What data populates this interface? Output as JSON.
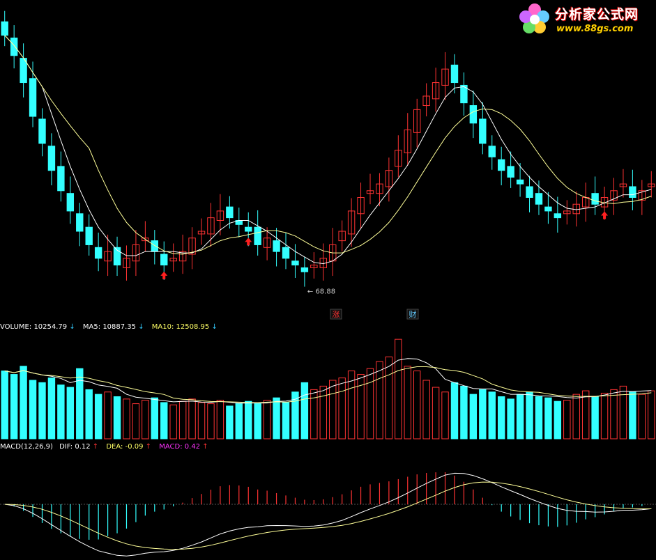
{
  "logo": {
    "name": "分析家公式网",
    "url": "www.88gs.com"
  },
  "colors": {
    "up": "#ff3333",
    "down": "#33ffff",
    "ma_white": "#ffffff",
    "ma_yellow": "#ffff99",
    "dif_label": "#ffffff",
    "dea_label": "#ffff66",
    "macd_label": "#ff33ff",
    "signal_red": "#ff2020"
  },
  "price_panel": {
    "low_marker": "68.88",
    "event_rise": "涨",
    "event_finance": "财"
  },
  "volume_panel": {
    "label_volume": "VOLUME:",
    "volume_value": "10254.79",
    "volume_arrow": "↓",
    "label_ma5": "MA5:",
    "ma5_value": "10887.35",
    "ma5_arrow": "↓",
    "label_ma10": "MA10:",
    "ma10_value": "12508.95",
    "ma10_arrow": "↓"
  },
  "macd_panel": {
    "label_macd_params": "MACD(12,26,9)",
    "label_dif": "DIF:",
    "dif_value": "0.12",
    "dif_arrow": "↑",
    "label_dea": "DEA:",
    "dea_value": "-0.09",
    "dea_arrow": "↑",
    "label_macd": "MACD:",
    "macd_value": "0.42",
    "macd_arrow": "↑"
  },
  "chart_data": [
    {
      "type": "candlestick",
      "title": "",
      "xlabel": "",
      "ylabel": "",
      "grid": false,
      "close_series": [
        104,
        101,
        97,
        92,
        88,
        84,
        81,
        78,
        75,
        73,
        71,
        72,
        70,
        71,
        73,
        74,
        72,
        70,
        71,
        72,
        74,
        75,
        77,
        78,
        77,
        76,
        75,
        73,
        74,
        72,
        71,
        70,
        69,
        70,
        71,
        73,
        75,
        78,
        80,
        81,
        82,
        84,
        87,
        90,
        93,
        95,
        97,
        99,
        97,
        94,
        91,
        88,
        86,
        84,
        83,
        82,
        80,
        79,
        78,
        77,
        78,
        79,
        80,
        79,
        80,
        81,
        82,
        80,
        81,
        82
      ],
      "low_label": 68.88
    },
    {
      "type": "bar",
      "title": "",
      "series_values": [
        58,
        55,
        62,
        50,
        48,
        52,
        46,
        44,
        60,
        42,
        38,
        40,
        36,
        34,
        30,
        33,
        35,
        31,
        29,
        32,
        34,
        31,
        30,
        33,
        28,
        30,
        32,
        30,
        33,
        35,
        31,
        40,
        48,
        42,
        45,
        50,
        52,
        58,
        55,
        60,
        66,
        70,
        85,
        62,
        58,
        50,
        44,
        40,
        48,
        45,
        38,
        42,
        40,
        36,
        34,
        38,
        40,
        36,
        35,
        32,
        33,
        38,
        41,
        36,
        39,
        42,
        45,
        40,
        38,
        41
      ],
      "ma5": 10887.35,
      "ma10": 12508.95,
      "volume": 10254.79
    },
    {
      "type": "line",
      "title": "",
      "dif": 0.12,
      "dea": -0.09,
      "macd": 0.42
    }
  ]
}
